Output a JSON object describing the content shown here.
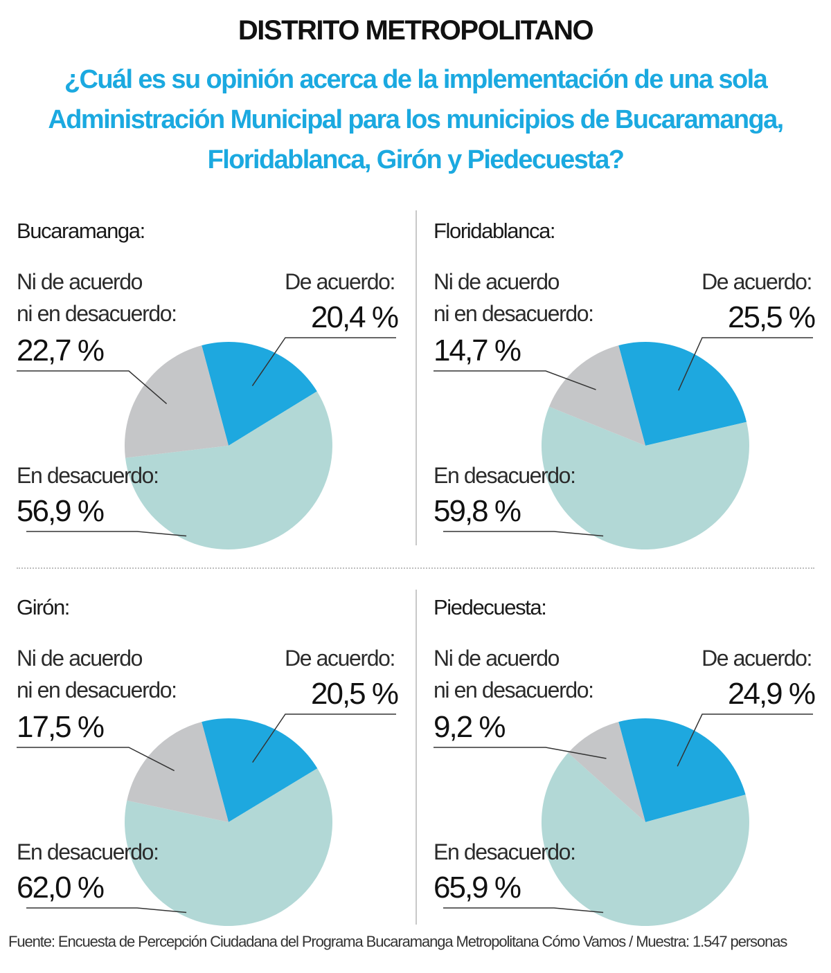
{
  "header": {
    "title": "DISTRITO METROPOLITANO",
    "subtitle": "¿Cuál es su opinión acerca de la implementación de una sola Administración Municipal para los municipios de Bucaramanga, Floridablanca, Girón y Piedecuesta?"
  },
  "labels": {
    "agree": "De acuerdo:",
    "neutral_line1": "Ni de acuerdo",
    "neutral_line2": "ni en desacuerdo:",
    "disagree": "En desacuerdo:"
  },
  "colors": {
    "agree": "#1ea8df",
    "neutral": "#c5c6c8",
    "disagree": "#b2d8d6",
    "leader": "#333333"
  },
  "chart_data": [
    {
      "type": "pie",
      "title": "Bucaramanga:",
      "slices": [
        {
          "key": "agree",
          "label": "De acuerdo:",
          "value": 20.4,
          "display": "20,4 %"
        },
        {
          "key": "disagree",
          "label": "En desacuerdo:",
          "value": 56.9,
          "display": "56,9 %"
        },
        {
          "key": "neutral",
          "label": "Ni de acuerdo ni en desacuerdo:",
          "value": 22.7,
          "display": "22,7 %"
        }
      ]
    },
    {
      "type": "pie",
      "title": "Floridablanca:",
      "slices": [
        {
          "key": "agree",
          "label": "De acuerdo:",
          "value": 25.5,
          "display": "25,5 %"
        },
        {
          "key": "disagree",
          "label": "En desacuerdo:",
          "value": 59.8,
          "display": "59,8 %"
        },
        {
          "key": "neutral",
          "label": "Ni de acuerdo ni en desacuerdo:",
          "value": 14.7,
          "display": "14,7 %"
        }
      ]
    },
    {
      "type": "pie",
      "title": "Girón:",
      "slices": [
        {
          "key": "agree",
          "label": "De acuerdo:",
          "value": 20.5,
          "display": "20,5 %"
        },
        {
          "key": "disagree",
          "label": "En desacuerdo:",
          "value": 62.0,
          "display": "62,0 %"
        },
        {
          "key": "neutral",
          "label": "Ni de acuerdo ni en desacuerdo:",
          "value": 17.5,
          "display": "17,5 %"
        }
      ]
    },
    {
      "type": "pie",
      "title": "Piedecuesta:",
      "slices": [
        {
          "key": "agree",
          "label": "De acuerdo:",
          "value": 24.9,
          "display": "24,9 %"
        },
        {
          "key": "disagree",
          "label": "En desacuerdo:",
          "value": 65.9,
          "display": "65,9 %"
        },
        {
          "key": "neutral",
          "label": "Ni de acuerdo ni en desacuerdo:",
          "value": 9.2,
          "display": "9,2 %"
        }
      ]
    }
  ],
  "footer": {
    "source": "Fuente: Encuesta de Percepción Ciudadana del Programa Bucaramanga Metropolitana Cómo Vamos / Muestra: 1.547 personas"
  }
}
